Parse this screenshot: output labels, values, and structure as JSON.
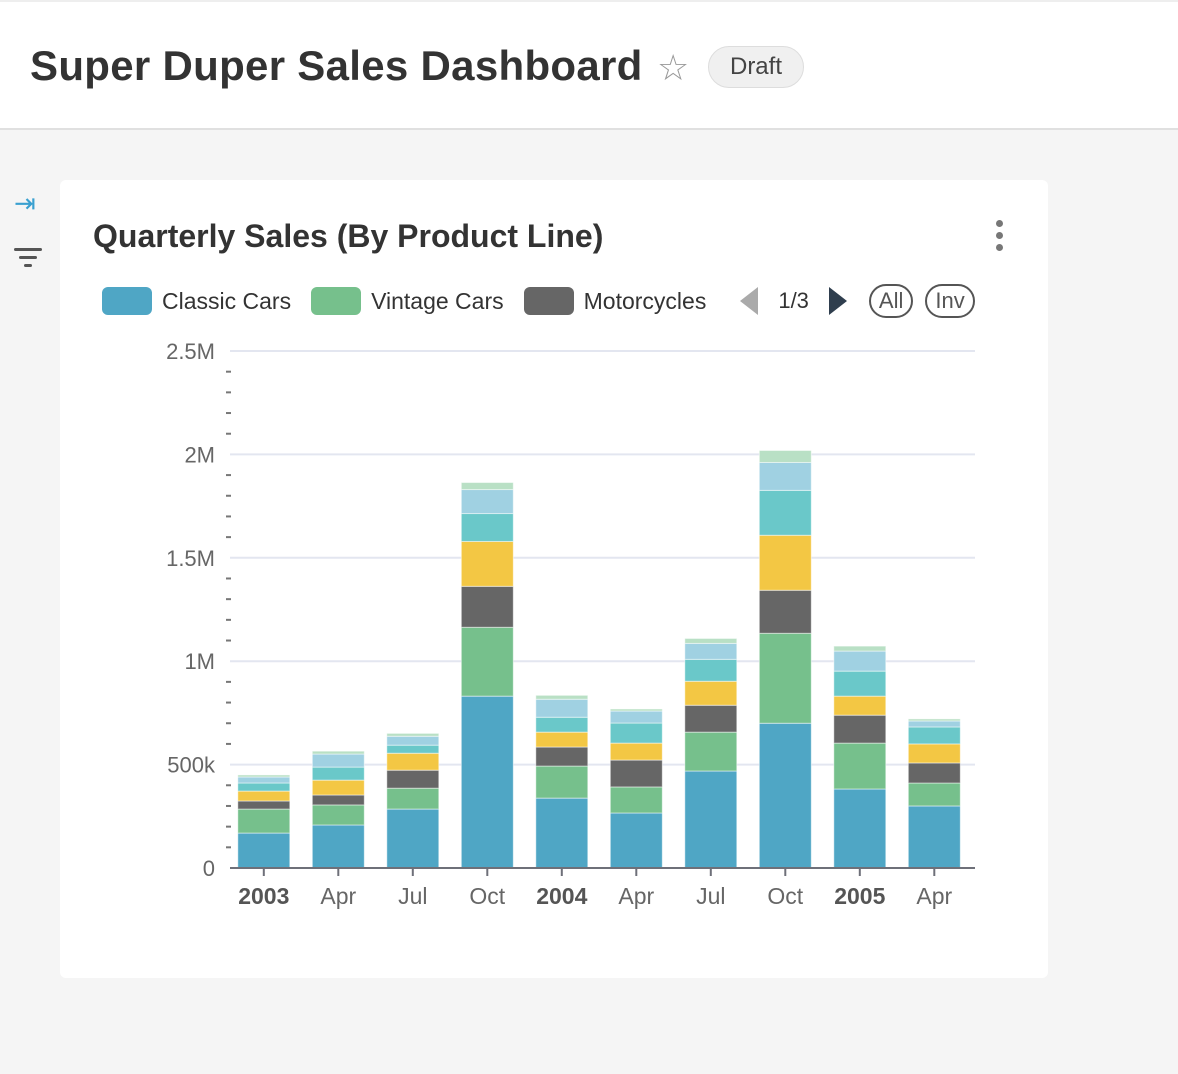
{
  "header": {
    "title": "Super Duper Sales Dashboard",
    "badge": "Draft"
  },
  "card": {
    "title": "Quarterly Sales (By Product Line)"
  },
  "legend": {
    "items": [
      {
        "label": "Classic Cars",
        "color": "#4fa6c5"
      },
      {
        "label": "Vintage Cars",
        "color": "#76c08c"
      },
      {
        "label": "Motorcycles",
        "color": "#666666"
      }
    ],
    "page": "1/3",
    "all_label": "All",
    "inv_label": "Inv"
  },
  "chart_data": {
    "type": "bar",
    "stacked": true,
    "categories": [
      "2003",
      "Apr",
      "Jul",
      "Oct",
      "2004",
      "Apr",
      "Jul",
      "Oct",
      "2005",
      "Apr"
    ],
    "bold_categories": [
      "2003",
      "2004",
      "2005"
    ],
    "ylim": [
      0,
      2500000
    ],
    "yticks": [
      "0",
      "500k",
      "1M",
      "1.5M",
      "2M",
      "2.5M"
    ],
    "grid": true,
    "legend_position": "top",
    "series": [
      {
        "name": "Classic Cars",
        "color": "#4fa6c5",
        "values": [
          169000,
          208000,
          285000,
          831000,
          338000,
          266000,
          469000,
          700000,
          382000,
          300000
        ]
      },
      {
        "name": "Vintage Cars",
        "color": "#76c08c",
        "values": [
          116000,
          97000,
          101000,
          333000,
          155000,
          126000,
          188000,
          435000,
          222000,
          111000
        ]
      },
      {
        "name": "Motorcycles",
        "color": "#666666",
        "values": [
          39000,
          48000,
          87000,
          198000,
          92000,
          130000,
          130000,
          208000,
          135000,
          97000
        ]
      },
      {
        "color": "#f3c744",
        "values": [
          48000,
          72000,
          82000,
          217000,
          72000,
          82000,
          116000,
          266000,
          92000,
          92000
        ]
      },
      {
        "color": "#6ac8c9",
        "values": [
          39000,
          63000,
          39000,
          135000,
          72000,
          97000,
          106000,
          217000,
          121000,
          82000
        ]
      },
      {
        "color": "#a0d1e2",
        "values": [
          29000,
          63000,
          43000,
          116000,
          87000,
          58000,
          77000,
          135000,
          97000,
          29000
        ]
      },
      {
        "color": "#b9e0c5",
        "values": [
          10000,
          14000,
          14000,
          34000,
          19000,
          10000,
          24000,
          58000,
          24000,
          10000
        ]
      }
    ]
  }
}
